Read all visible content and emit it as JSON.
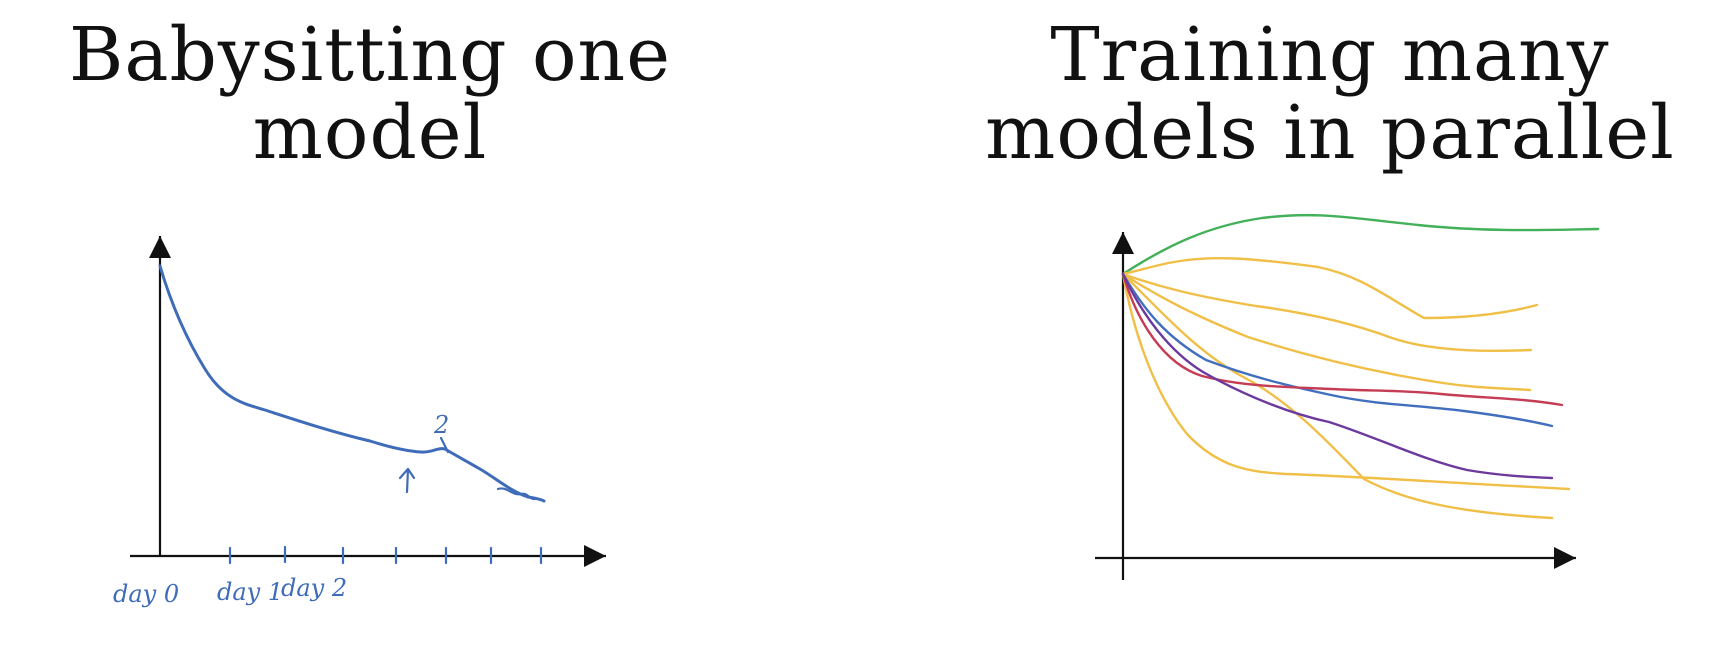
{
  "left_panel": {
    "title_line1": "Babysitting one",
    "title_line2": "model",
    "x_labels": [
      "day 0",
      "day 1",
      "day 2"
    ],
    "annotation": "2"
  },
  "right_panel": {
    "title_line1": "Training many",
    "title_line2": "models in parallel",
    "curve_colors": {
      "green": "#43b05a",
      "yellow": "#f0bf48",
      "blue": "#426fbd",
      "red": "#c43d54",
      "purple": "#6c3a9c"
    }
  },
  "colors": {
    "ink": "#111111",
    "handwriting": "#3f6cb8"
  }
}
